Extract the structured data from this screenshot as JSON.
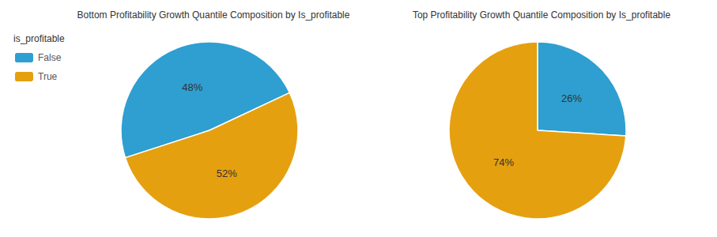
{
  "chart_data": [
    {
      "type": "pie",
      "title": "Bottom Profitability Growth Quantile Composition by Is_profitable",
      "categories": [
        "False",
        "True"
      ],
      "values": [
        48,
        52
      ],
      "value_labels": [
        "48%",
        "52%"
      ],
      "colors": [
        "#2E9FD0",
        "#E5A010"
      ],
      "data_labels": true,
      "legend": "upper left",
      "legend_title": "is_profitable"
    },
    {
      "type": "pie",
      "title": "Top Profitability Growth Quantile Composition by Is_profitable",
      "categories": [
        "False",
        "True"
      ],
      "values": [
        26,
        74
      ],
      "value_labels": [
        "26%",
        "74%"
      ],
      "colors": [
        "#2E9FD0",
        "#E5A010"
      ],
      "data_labels": true
    }
  ]
}
